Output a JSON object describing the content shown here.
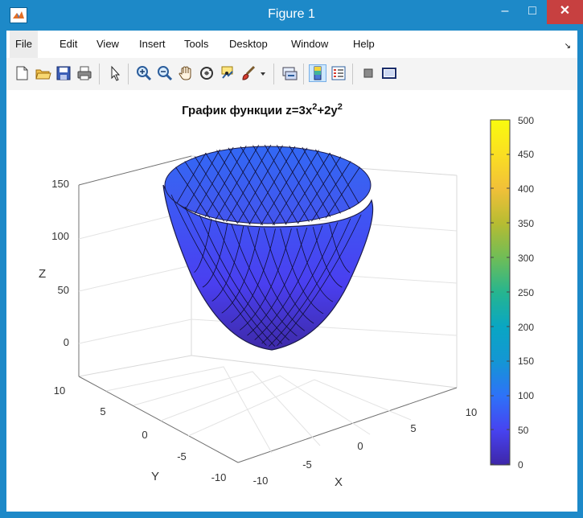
{
  "window": {
    "title": "Figure 1",
    "min": "–",
    "max": "□",
    "close": "✕"
  },
  "menu": {
    "items": [
      "File",
      "Edit",
      "View",
      "Insert",
      "Tools",
      "Desktop",
      "Window",
      "Help"
    ],
    "overflow": "↘"
  },
  "toolbar": {
    "icons": [
      "new-figure-icon",
      "open-file-icon",
      "save-icon",
      "print-icon",
      "pointer-icon",
      "zoom-in-icon",
      "zoom-out-icon",
      "pan-hand-icon",
      "rotate-3d-icon",
      "data-cursor-icon",
      "brush-icon",
      "link-plot-icon",
      "colorbar-icon",
      "legend-icon",
      "hide-tools-icon",
      "show-tools-icon"
    ]
  },
  "chart_data": {
    "type": "surface",
    "title": "График функции z=3x²+2y²",
    "title_parts": {
      "base": "График функции z=3x",
      "sup1": "2",
      "mid": "+2y",
      "sup2": "2"
    },
    "function": "z = 3x^2 + 2y^2",
    "xlabel": "X",
    "ylabel": "Y",
    "zlabel": "Z",
    "x_ticks": [
      "-10",
      "-5",
      "0",
      "5",
      "10"
    ],
    "y_ticks": [
      "-10",
      "-5",
      "0",
      "5",
      "10"
    ],
    "z_ticks": [
      "0",
      "50",
      "100",
      "150"
    ],
    "xlim": [
      -10,
      10
    ],
    "ylim": [
      -10,
      10
    ],
    "zlim": [
      -10,
      150
    ],
    "colorbar_ticks": [
      "0",
      "50",
      "100",
      "150",
      "200",
      "250",
      "300",
      "350",
      "400",
      "450",
      "500"
    ],
    "colorbar_range": [
      0,
      500
    ],
    "colormap": [
      "#3e26a8",
      "#4743f0",
      "#2e72f8",
      "#1496d4",
      "#09a6c3",
      "#26b58f",
      "#6fbd57",
      "#b7bc32",
      "#f1c039",
      "#fadf22",
      "#f9fb0e"
    ],
    "grid": true,
    "surface_color": "#3c63f6",
    "inner_color": "#3f5ee8"
  }
}
